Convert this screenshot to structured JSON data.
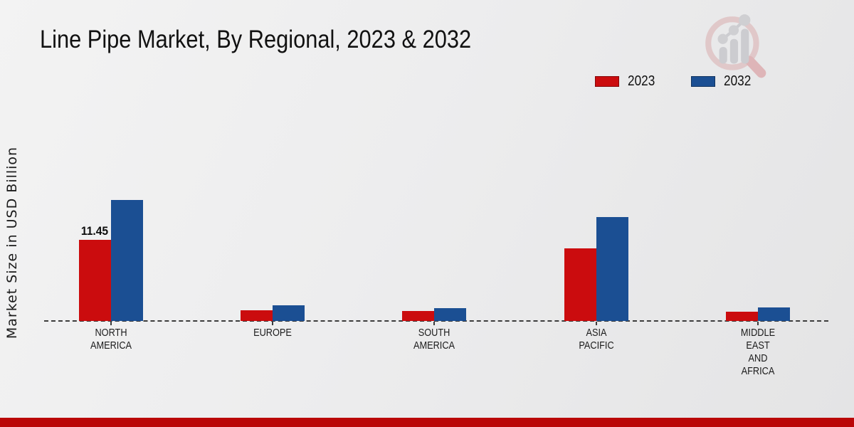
{
  "title": "Line Pipe Market, By Regional, 2023 & 2032",
  "y_axis_label": "Market Size in USD Billion",
  "legend": [
    {
      "label": "2023",
      "color": "#cb0c0e"
    },
    {
      "label": "2032",
      "color": "#1b4f93"
    }
  ],
  "colors": {
    "bottom_strip": "#ba0707",
    "axis": "#3c3c3c",
    "background": "#ededee"
  },
  "logo_name": "market-research-magnifier-logo",
  "chart_data": {
    "type": "bar",
    "title": "Line Pipe Market, By Regional, 2023 & 2032",
    "xlabel": "",
    "ylabel": "Market Size in USD Billion",
    "categories": [
      "NORTH AMERICA",
      "EUROPE",
      "SOUTH AMERICA",
      "ASIA PACIFIC",
      "MIDDLE EAST AND AFRICA"
    ],
    "category_label_lines": [
      [
        "NORTH",
        "AMERICA"
      ],
      [
        "EUROPE"
      ],
      [
        "SOUTH",
        "AMERICA"
      ],
      [
        "ASIA",
        "PACIFIC"
      ],
      [
        "MIDDLE",
        "EAST",
        "AND",
        "AFRICA"
      ]
    ],
    "series": [
      {
        "name": "2023",
        "color": "#cb0c0e",
        "values": [
          11.45,
          1.5,
          1.4,
          10.2,
          1.3
        ]
      },
      {
        "name": "2032",
        "color": "#1b4f93",
        "values": [
          17.1,
          2.2,
          1.8,
          14.7,
          1.9
        ]
      }
    ],
    "data_labels": [
      {
        "series_index": 0,
        "category_index": 0,
        "text": "11.45"
      }
    ],
    "ylim": [
      0,
      20
    ],
    "grid": false,
    "legend_position": "top-right",
    "baseline_style": "dashed",
    "y_ticks_visible": false
  }
}
